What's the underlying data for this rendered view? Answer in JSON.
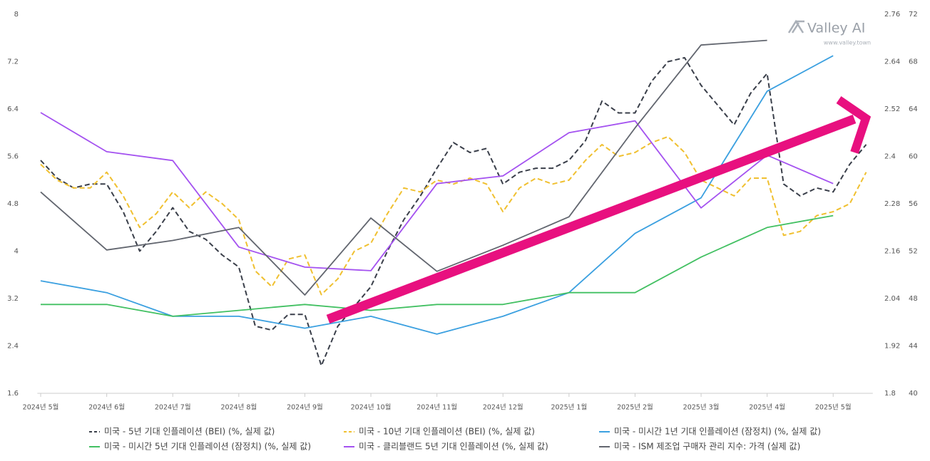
{
  "chart_data": {
    "type": "line",
    "watermark": {
      "name": "Valley AI",
      "url": "www.valley.town"
    },
    "xlim": [
      -0.05,
      12.6
    ],
    "xticks": [
      {
        "value": 0,
        "label": "2024년 5월"
      },
      {
        "value": 1,
        "label": "2024년 6월"
      },
      {
        "value": 2,
        "label": "2024년 7월"
      },
      {
        "value": 3,
        "label": "2024년 8월"
      },
      {
        "value": 4,
        "label": "2024년 9월"
      },
      {
        "value": 5,
        "label": "2024년 10월"
      },
      {
        "value": 6,
        "label": "2024년 11월"
      },
      {
        "value": 7,
        "label": "2024년 12월"
      },
      {
        "value": 8,
        "label": "2025년 1월"
      },
      {
        "value": 9,
        "label": "2025년 2월"
      },
      {
        "value": 10,
        "label": "2025년 3월"
      },
      {
        "value": 11,
        "label": "2025년 4월"
      },
      {
        "value": 12,
        "label": "2025년 5월"
      }
    ],
    "ylim": [
      1.6,
      8
    ],
    "yticks": [
      1.6,
      2.4,
      3.2,
      4,
      4.8,
      5.6,
      6.4,
      7.2,
      8
    ],
    "y2lim": [
      1.8,
      2.76
    ],
    "y2ticks": [
      1.8,
      1.92,
      2.04,
      2.16,
      2.28,
      2.4,
      2.52,
      2.64,
      2.76
    ],
    "y3lim": [
      40,
      72
    ],
    "y3ticks": [
      40,
      44,
      48,
      52,
      56,
      60,
      64,
      68,
      72
    ],
    "grid": false,
    "series": [
      {
        "name": "미국 - 5년 기대 인플레이션 (BEI) (%, 실제 값)",
        "color": "#3a3f4a",
        "dashed": true,
        "axis": "y2",
        "x": [
          0,
          0.25,
          0.5,
          0.75,
          1,
          1.25,
          1.5,
          1.75,
          2,
          2.25,
          2.5,
          2.75,
          3,
          3.25,
          3.5,
          3.75,
          4,
          4.25,
          4.5,
          4.75,
          5,
          5.25,
          5.5,
          5.75,
          6,
          6.25,
          6.5,
          6.75,
          7,
          7.25,
          7.5,
          7.75,
          8,
          8.25,
          8.5,
          8.75,
          9,
          9.25,
          9.5,
          9.75,
          10,
          10.25,
          10.5,
          10.75,
          11,
          11.25,
          11.5,
          11.75,
          12,
          12.25,
          12.5
        ],
        "values": [
          2.39,
          2.345,
          2.32,
          2.33,
          2.33,
          2.26,
          2.16,
          2.21,
          2.27,
          2.21,
          2.19,
          2.15,
          2.12,
          1.97,
          1.96,
          2.0,
          2.0,
          1.87,
          1.97,
          2.02,
          2.07,
          2.16,
          2.24,
          2.3,
          2.37,
          2.435,
          2.41,
          2.42,
          2.33,
          2.36,
          2.37,
          2.37,
          2.39,
          2.44,
          2.54,
          2.51,
          2.51,
          2.59,
          2.64,
          2.65,
          2.58,
          2.53,
          2.48,
          2.56,
          2.61,
          2.33,
          2.3,
          2.32,
          2.31,
          2.38,
          2.43
        ]
      },
      {
        "name": "미국 - 10년 기대 인플레이션 (BEI) (%, 실제 값)",
        "color": "#f0c030",
        "dashed": true,
        "axis": "y2",
        "x": [
          0,
          0.25,
          0.5,
          0.75,
          1,
          1.25,
          1.5,
          1.75,
          2,
          2.25,
          2.5,
          2.75,
          3,
          3.25,
          3.5,
          3.75,
          4,
          4.25,
          4.5,
          4.75,
          5,
          5.25,
          5.5,
          5.75,
          6,
          6.25,
          6.5,
          6.75,
          7,
          7.25,
          7.5,
          7.75,
          8,
          8.25,
          8.5,
          8.75,
          9,
          9.25,
          9.5,
          9.75,
          10,
          10.25,
          10.5,
          10.75,
          11,
          11.25,
          11.5,
          11.75,
          12,
          12.25,
          12.5
        ],
        "values": [
          2.38,
          2.34,
          2.32,
          2.32,
          2.36,
          2.3,
          2.22,
          2.255,
          2.31,
          2.27,
          2.31,
          2.28,
          2.24,
          2.11,
          2.07,
          2.14,
          2.15,
          2.05,
          2.09,
          2.16,
          2.18,
          2.255,
          2.32,
          2.31,
          2.34,
          2.33,
          2.345,
          2.33,
          2.26,
          2.32,
          2.345,
          2.33,
          2.34,
          2.39,
          2.43,
          2.4,
          2.41,
          2.435,
          2.45,
          2.41,
          2.34,
          2.32,
          2.3,
          2.345,
          2.345,
          2.2,
          2.21,
          2.25,
          2.26,
          2.28,
          2.36
        ]
      },
      {
        "name": "미국 - 미시간 1년 기대 인플레이션 (잠정치) (%, 실제 값)",
        "color": "#3ba0e0",
        "dashed": false,
        "axis": "y",
        "x": [
          0,
          1,
          2,
          3,
          4,
          5,
          6,
          7,
          8,
          9,
          10,
          11,
          12
        ],
        "values": [
          3.5,
          3.3,
          2.9,
          2.9,
          2.7,
          2.9,
          2.6,
          2.9,
          3.3,
          4.3,
          4.9,
          6.7,
          7.3
        ]
      },
      {
        "name": "미국 - 미시간 5년 기대 인플레이션 (잠정치) (%, 실제 값)",
        "color": "#42c062",
        "dashed": false,
        "axis": "y",
        "x": [
          0,
          1,
          2,
          3,
          4,
          5,
          6,
          7,
          8,
          9,
          10,
          11,
          12
        ],
        "values": [
          3.1,
          3.1,
          2.9,
          3.0,
          3.1,
          3.0,
          3.1,
          3.1,
          3.3,
          3.3,
          3.9,
          4.4,
          4.6
        ]
      },
      {
        "name": "미국 - 클리블랜드 5년 기대 인플레이션 (%, 실제 값)",
        "color": "#a452f0",
        "dashed": false,
        "axis": "y",
        "x": [
          0,
          1,
          2,
          3,
          4,
          5,
          6,
          7,
          8,
          9,
          10,
          11,
          12
        ],
        "values": [
          6.34,
          5.68,
          5.53,
          4.07,
          3.73,
          3.67,
          5.14,
          5.27,
          6.0,
          6.2,
          4.73,
          5.62,
          5.14
        ]
      },
      {
        "name": "미국 - ISM 제조업 구매자 관리 지수: 가격 (실제 값)",
        "color": "#62666f",
        "dashed": false,
        "axis": "y3",
        "x": [
          0,
          1,
          2,
          3,
          4,
          5,
          6,
          7,
          8,
          9,
          10,
          11
        ],
        "values": [
          57.0,
          52.1,
          52.9,
          54.0,
          48.3,
          54.8,
          50.3,
          52.5,
          54.9,
          62.4,
          69.4,
          69.8
        ]
      }
    ]
  }
}
